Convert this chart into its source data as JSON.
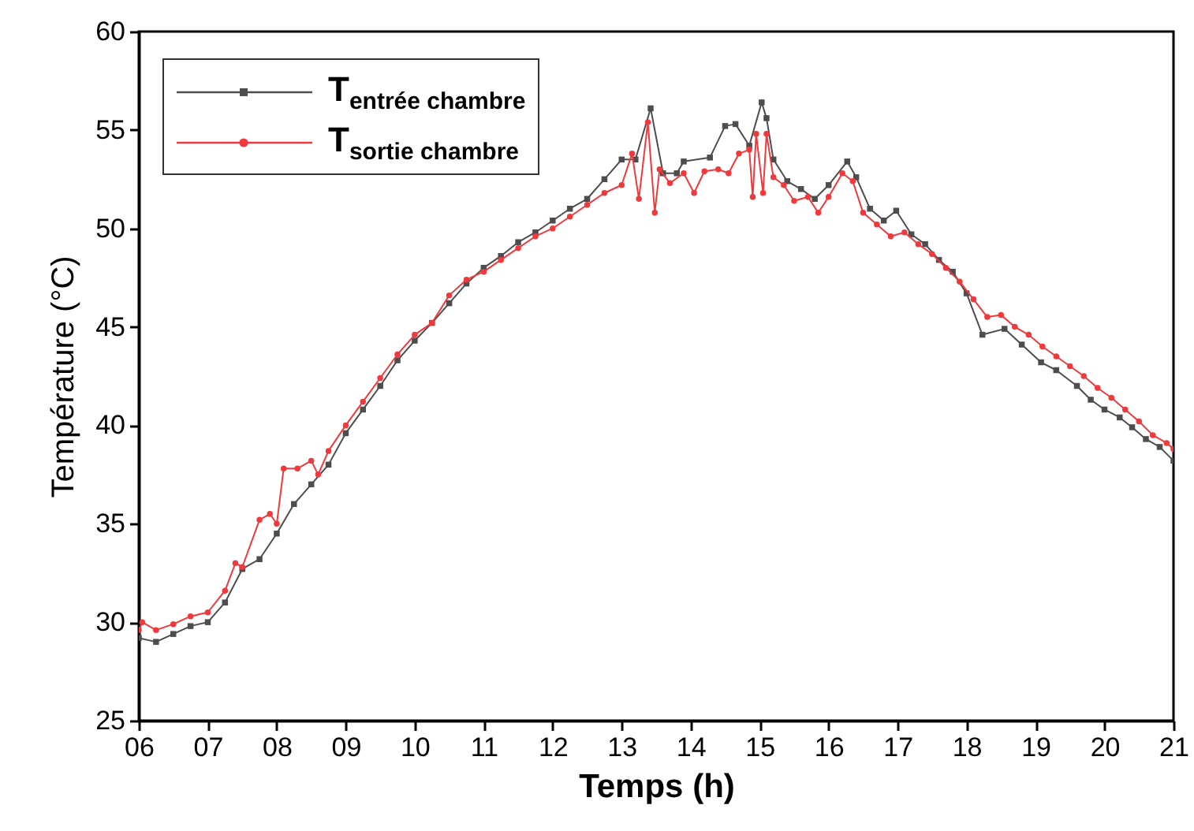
{
  "chart_data": {
    "type": "line",
    "xlabel": "Temps (h)",
    "ylabel": "Température (°C)",
    "xlim": [
      6,
      21
    ],
    "xticks": [
      {
        "value": 6,
        "label": "06"
      },
      {
        "value": 7,
        "label": "07"
      },
      {
        "value": 8,
        "label": "08"
      },
      {
        "value": 9,
        "label": "09"
      },
      10,
      11,
      12,
      13,
      14,
      15,
      16,
      17,
      18,
      19,
      20,
      21
    ],
    "ylim": [
      25,
      60
    ],
    "yticks": [
      25,
      30,
      35,
      40,
      45,
      50,
      55,
      60
    ],
    "grid": false,
    "legend": "top left",
    "series": [
      {
        "name": "T$_{entrée chambre}$",
        "color": "#4d4d4d",
        "marker": "square",
        "x": [
          6.0,
          6.25,
          6.5,
          6.75,
          7.0,
          7.25,
          7.5,
          7.75,
          8.0,
          8.25,
          8.5,
          8.75,
          9.0,
          9.25,
          9.5,
          9.75,
          10.0,
          10.25,
          10.5,
          10.75,
          11.0,
          11.25,
          11.5,
          11.75,
          12.0,
          12.25,
          12.5,
          12.75,
          13.0,
          13.2,
          13.42,
          13.6,
          13.8,
          13.9,
          14.28,
          14.5,
          14.65,
          14.85,
          15.03,
          15.1,
          15.2,
          15.4,
          15.6,
          15.8,
          16.0,
          16.27,
          16.4,
          16.6,
          16.8,
          16.98,
          17.2,
          17.4,
          17.6,
          17.8,
          18.0,
          18.23,
          18.55,
          18.8,
          19.08,
          19.3,
          19.6,
          19.8,
          20.0,
          20.22,
          20.4,
          20.6,
          20.8,
          21.0
        ],
        "values": [
          29.2,
          29.0,
          29.4,
          29.8,
          30.0,
          31.0,
          32.7,
          33.2,
          34.5,
          36.0,
          37.0,
          38.0,
          39.6,
          40.8,
          42.0,
          43.3,
          44.3,
          45.2,
          46.2,
          47.2,
          48.0,
          48.6,
          49.3,
          49.8,
          50.4,
          51.0,
          51.5,
          52.5,
          53.5,
          53.5,
          56.1,
          52.8,
          52.8,
          53.4,
          53.6,
          55.2,
          55.3,
          54.2,
          56.4,
          55.6,
          53.5,
          52.4,
          52.0,
          51.5,
          52.2,
          53.4,
          52.6,
          51.0,
          50.4,
          50.9,
          49.7,
          49.2,
          48.4,
          47.8,
          46.7,
          44.6,
          44.9,
          44.1,
          43.2,
          42.8,
          42.0,
          41.3,
          40.8,
          40.4,
          39.9,
          39.3,
          38.9,
          38.2
        ]
      },
      {
        "name": "T$_{sortie chambre}$",
        "color": "#f0393c",
        "marker": "circle",
        "x": [
          6.0,
          6.05,
          6.25,
          6.5,
          6.75,
          7.0,
          7.25,
          7.4,
          7.5,
          7.75,
          7.9,
          8.0,
          8.1,
          8.3,
          8.5,
          8.6,
          8.75,
          9.0,
          9.25,
          9.5,
          9.75,
          10.0,
          10.25,
          10.5,
          10.75,
          11.0,
          11.25,
          11.5,
          11.75,
          12.0,
          12.25,
          12.5,
          12.75,
          13.0,
          13.15,
          13.25,
          13.38,
          13.48,
          13.55,
          13.7,
          13.9,
          14.05,
          14.2,
          14.4,
          14.55,
          14.7,
          14.85,
          14.9,
          14.95,
          15.05,
          15.1,
          15.2,
          15.35,
          15.5,
          15.7,
          15.85,
          16.0,
          16.2,
          16.35,
          16.5,
          16.7,
          16.9,
          17.1,
          17.3,
          17.5,
          17.7,
          17.9,
          18.1,
          18.3,
          18.5,
          18.7,
          18.9,
          19.1,
          19.3,
          19.5,
          19.7,
          19.9,
          20.1,
          20.3,
          20.5,
          20.7,
          20.9,
          21.0
        ],
        "values": [
          29.6,
          30.0,
          29.6,
          29.9,
          30.3,
          30.5,
          31.6,
          33.0,
          32.8,
          35.2,
          35.5,
          35.0,
          37.8,
          37.8,
          38.2,
          37.5,
          38.7,
          40.0,
          41.2,
          42.4,
          43.6,
          44.6,
          45.2,
          46.6,
          47.4,
          47.8,
          48.4,
          49.0,
          49.6,
          50.0,
          50.6,
          51.2,
          51.8,
          52.2,
          53.8,
          51.5,
          55.4,
          50.8,
          53.0,
          52.3,
          52.8,
          51.8,
          52.9,
          53.0,
          52.8,
          53.8,
          54.0,
          51.6,
          54.8,
          51.8,
          54.8,
          52.6,
          52.2,
          51.4,
          51.6,
          50.8,
          51.6,
          52.8,
          52.4,
          50.8,
          50.2,
          49.6,
          49.8,
          49.2,
          48.7,
          48.0,
          47.3,
          46.4,
          45.5,
          45.6,
          45.0,
          44.6,
          44.0,
          43.5,
          43.0,
          42.5,
          41.9,
          41.4,
          40.8,
          40.2,
          39.5,
          39.1,
          38.8
        ]
      }
    ]
  }
}
